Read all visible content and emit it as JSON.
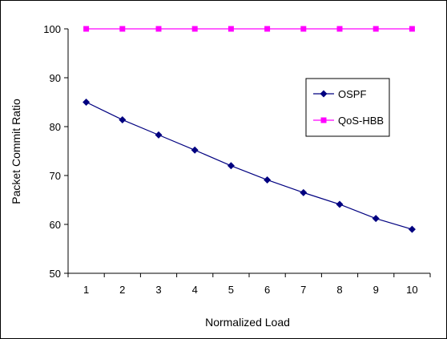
{
  "chart_data": {
    "type": "line",
    "title": "",
    "xlabel": "Normalized Load",
    "ylabel": "Packet Commit Ratio",
    "categories": [
      "1",
      "2",
      "3",
      "4",
      "5",
      "6",
      "7",
      "8",
      "9",
      "10"
    ],
    "ylim": [
      50,
      100
    ],
    "yticks": [
      "50",
      "60",
      "70",
      "80",
      "90",
      "100"
    ],
    "grid": false,
    "legend_position": "right",
    "series": [
      {
        "name": "OSPF",
        "color": "#000080",
        "marker": "diamond",
        "values": [
          85.0,
          81.4,
          78.3,
          75.2,
          72.0,
          69.1,
          66.5,
          64.1,
          61.2,
          59.0
        ]
      },
      {
        "name": "QoS-HBB",
        "color": "#ff00ff",
        "marker": "square",
        "values": [
          100,
          100,
          100,
          100,
          100,
          100,
          100,
          100,
          100,
          100
        ]
      }
    ]
  }
}
